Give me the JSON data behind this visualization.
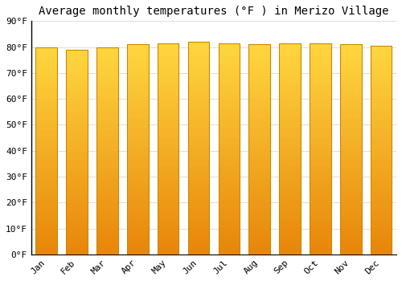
{
  "title": "Average monthly temperatures (°F ) in Merizo Village",
  "months": [
    "Jan",
    "Feb",
    "Mar",
    "Apr",
    "May",
    "Jun",
    "Jul",
    "Aug",
    "Sep",
    "Oct",
    "Nov",
    "Dec"
  ],
  "values": [
    80,
    79,
    80,
    81,
    81.5,
    82,
    81.5,
    81,
    81.5,
    81.5,
    81,
    80.5
  ],
  "ylim": [
    0,
    90
  ],
  "yticks": [
    0,
    10,
    20,
    30,
    40,
    50,
    60,
    70,
    80,
    90
  ],
  "ytick_labels": [
    "0°F",
    "10°F",
    "20°F",
    "30°F",
    "40°F",
    "50°F",
    "60°F",
    "70°F",
    "80°F",
    "90°F"
  ],
  "bar_color_bottom": "#E8860A",
  "bar_color_top": "#FFD740",
  "bar_edge_color": "#CC8800",
  "background_color": "#FFFFFF",
  "plot_bg_color": "#FFFFFF",
  "grid_color": "#DDDDDD",
  "title_fontsize": 10,
  "tick_fontsize": 8,
  "bar_width": 0.7
}
